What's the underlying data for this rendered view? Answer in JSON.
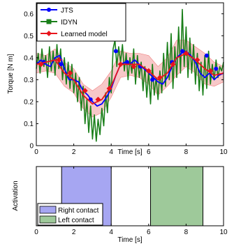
{
  "chart_data": [
    {
      "type": "line",
      "xlabel": "Time [s]",
      "ylabel": "Torque [N m]",
      "xlim": [
        0,
        10
      ],
      "ylim": [
        0,
        0.65
      ],
      "xticks": [
        "0",
        "2",
        "4",
        "6",
        "8",
        "10"
      ],
      "yticks": [
        "0",
        "0.1",
        "0.2",
        "0.3",
        "0.4",
        "0.5",
        "0.6"
      ],
      "legend_position": "top-left",
      "band": {
        "color": "#f4b6b6",
        "x": [
          0,
          0.5,
          1.0,
          1.5,
          2.0,
          2.5,
          3.0,
          3.5,
          4.0,
          4.5,
          5.0,
          5.5,
          6.0,
          6.5,
          7.0,
          7.5,
          8.0,
          8.5,
          9.0,
          9.5,
          10.0
        ],
        "upper": [
          0.42,
          0.41,
          0.44,
          0.38,
          0.35,
          0.28,
          0.25,
          0.28,
          0.34,
          0.43,
          0.42,
          0.42,
          0.41,
          0.36,
          0.4,
          0.48,
          0.48,
          0.45,
          0.42,
          0.38,
          0.36
        ],
        "lower": [
          0.33,
          0.34,
          0.33,
          0.27,
          0.24,
          0.17,
          0.13,
          0.15,
          0.22,
          0.31,
          0.32,
          0.31,
          0.28,
          0.23,
          0.27,
          0.32,
          0.36,
          0.33,
          0.28,
          0.27,
          0.29
        ]
      },
      "series": [
        {
          "name": "JTS",
          "color": "#0000ff",
          "marker": "circle",
          "x": [
            0,
            0.25,
            0.5,
            0.75,
            1.0,
            1.25,
            1.5,
            1.75,
            2.0,
            2.25,
            2.5,
            2.75,
            3.0,
            3.25,
            3.5,
            3.75,
            4.0,
            4.25,
            4.5,
            4.75,
            5.0,
            5.25,
            5.5,
            5.75,
            6.0,
            6.25,
            6.5,
            6.75,
            7.0,
            7.25,
            7.5,
            7.75,
            8.0,
            8.25,
            8.5,
            8.75,
            9.0,
            9.25,
            9.5,
            9.75,
            10.0
          ],
          "values": [
            0.37,
            0.39,
            0.37,
            0.36,
            0.4,
            0.41,
            0.35,
            0.3,
            0.3,
            0.29,
            0.25,
            0.23,
            0.2,
            0.18,
            0.19,
            0.22,
            0.26,
            0.32,
            0.37,
            0.38,
            0.37,
            0.39,
            0.37,
            0.35,
            0.33,
            0.31,
            0.29,
            0.28,
            0.31,
            0.36,
            0.4,
            0.42,
            0.43,
            0.41,
            0.38,
            0.33,
            0.31,
            0.33,
            0.3,
            0.32,
            0.33
          ],
          "marker_x": [
            0.4,
            1.3,
            2.9,
            4.25,
            4.85,
            5.55,
            6.2,
            7.25,
            7.8,
            9.1,
            9.6
          ],
          "marker_values": [
            0.38,
            0.37,
            0.21,
            0.43,
            0.38,
            0.36,
            0.3,
            0.38,
            0.43,
            0.41,
            0.35
          ]
        },
        {
          "name": "IDYN",
          "color": "#1a7f1a",
          "marker": "square",
          "x": [
            0,
            0.1,
            0.2,
            0.3,
            0.4,
            0.5,
            0.6,
            0.7,
            0.8,
            0.9,
            1.0,
            1.1,
            1.2,
            1.3,
            1.4,
            1.5,
            1.6,
            1.7,
            1.8,
            1.9,
            2.0,
            2.1,
            2.2,
            2.3,
            2.4,
            2.5,
            2.6,
            2.7,
            2.8,
            2.9,
            3.0,
            3.1,
            3.2,
            3.3,
            3.4,
            3.5,
            3.6,
            3.7,
            3.8,
            3.9,
            4.0,
            4.1,
            4.2,
            4.3,
            4.4,
            4.5,
            4.6,
            4.7,
            4.8,
            4.9,
            5.0,
            5.1,
            5.2,
            5.3,
            5.4,
            5.5,
            5.6,
            5.7,
            5.8,
            5.9,
            6.0,
            6.1,
            6.2,
            6.3,
            6.4,
            6.5,
            6.6,
            6.7,
            6.8,
            6.9,
            7.0,
            7.1,
            7.2,
            7.3,
            7.4,
            7.5,
            7.6,
            7.7,
            7.8,
            7.9,
            8.0,
            8.1,
            8.2,
            8.3,
            8.4,
            8.5,
            8.6,
            8.7,
            8.8,
            8.9,
            9.0,
            9.1,
            9.2,
            9.3,
            9.4,
            9.5,
            9.6,
            9.7,
            9.8,
            9.9,
            10.0
          ],
          "values": [
            0.35,
            0.42,
            0.33,
            0.44,
            0.36,
            0.41,
            0.31,
            0.45,
            0.34,
            0.43,
            0.32,
            0.46,
            0.35,
            0.44,
            0.3,
            0.4,
            0.28,
            0.38,
            0.26,
            0.37,
            0.24,
            0.33,
            0.2,
            0.31,
            0.16,
            0.27,
            0.1,
            0.21,
            0.06,
            0.18,
            0.03,
            0.14,
            0.02,
            0.12,
            0.05,
            0.17,
            0.09,
            0.24,
            0.15,
            0.31,
            0.24,
            0.44,
            0.48,
            0.36,
            0.45,
            0.38,
            0.46,
            0.34,
            0.42,
            0.3,
            0.4,
            0.33,
            0.44,
            0.28,
            0.41,
            0.31,
            0.38,
            0.25,
            0.36,
            0.22,
            0.34,
            0.19,
            0.37,
            0.23,
            0.31,
            0.21,
            0.34,
            0.24,
            0.42,
            0.27,
            0.47,
            0.3,
            0.51,
            0.26,
            0.45,
            0.31,
            0.54,
            0.33,
            0.62,
            0.36,
            0.54,
            0.31,
            0.49,
            0.33,
            0.46,
            0.28,
            0.42,
            0.25,
            0.38,
            0.23,
            0.41,
            0.26,
            0.43,
            0.28,
            0.37,
            0.3,
            0.39,
            0.31,
            0.36,
            0.34,
            0.38
          ],
          "marker_x": [],
          "marker_values": []
        },
        {
          "name": "Learned model",
          "color": "#e8141c",
          "marker": "diamond",
          "x": [
            0,
            0.5,
            1.0,
            1.5,
            2.0,
            2.5,
            3.0,
            3.5,
            4.0,
            4.5,
            5.0,
            5.5,
            6.0,
            6.5,
            7.0,
            7.5,
            8.0,
            8.5,
            9.0,
            9.5,
            10.0
          ],
          "values": [
            0.37,
            0.38,
            0.39,
            0.33,
            0.3,
            0.23,
            0.19,
            0.21,
            0.27,
            0.37,
            0.37,
            0.37,
            0.34,
            0.3,
            0.33,
            0.4,
            0.42,
            0.39,
            0.35,
            0.32,
            0.33
          ],
          "marker_x": [
            0.25,
            1.2,
            1.8,
            2.6,
            3.3,
            3.9,
            4.5,
            5.2,
            6.0,
            6.6,
            7.3,
            8.0,
            8.6,
            9.3
          ],
          "marker_values": [
            0.37,
            0.39,
            0.33,
            0.25,
            0.21,
            0.26,
            0.37,
            0.36,
            0.34,
            0.31,
            0.37,
            0.42,
            0.39,
            0.34
          ]
        }
      ]
    },
    {
      "type": "area",
      "xlabel": "Time [s]",
      "ylabel": "Activation",
      "xlim": [
        0,
        10
      ],
      "xticks": [
        "0",
        "2",
        "4",
        "6",
        "8",
        "10"
      ],
      "legend_position": "bottom-left",
      "series": [
        {
          "name": "Right contact",
          "color": "#a6a6f2",
          "start": 1.35,
          "end": 4.0
        },
        {
          "name": "Left contact",
          "color": "#9ec99a",
          "start": 6.1,
          "end": 8.9
        }
      ]
    }
  ]
}
